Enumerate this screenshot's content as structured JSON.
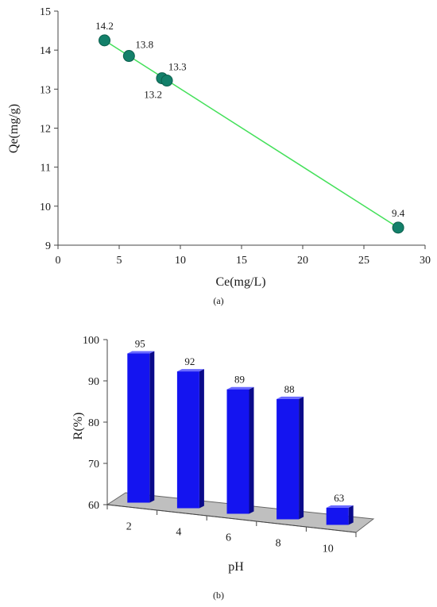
{
  "chart_data": [
    {
      "type": "scatter",
      "xlabel": "Ce(mg/L)",
      "ylabel": "Qe(mg/g)",
      "xlim": [
        0,
        30
      ],
      "ylim": [
        9,
        15
      ],
      "xticks": [
        0,
        5,
        10,
        15,
        20,
        25,
        30
      ],
      "yticks": [
        9,
        10,
        11,
        12,
        13,
        14,
        15
      ],
      "points": [
        {
          "x": 3.8,
          "y": 14.25,
          "label": "14.2"
        },
        {
          "x": 5.8,
          "y": 13.85,
          "label": "13.8"
        },
        {
          "x": 8.5,
          "y": 13.28,
          "label": "13.3"
        },
        {
          "x": 8.9,
          "y": 13.22,
          "label": "13.2"
        },
        {
          "x": 27.8,
          "y": 9.45,
          "label": "9.4"
        }
      ],
      "trendline": {
        "x": [
          3.8,
          27.8
        ],
        "y": [
          14.25,
          9.45
        ]
      },
      "marker_color": "#13806a",
      "line_color": "#44e05a",
      "grid": false,
      "caption": "(a)"
    },
    {
      "type": "bar",
      "xlabel": "pH",
      "ylabel": "R(%)",
      "ylim": [
        60,
        100
      ],
      "yticks": [
        60,
        70,
        80,
        90,
        100
      ],
      "categories": [
        "2",
        "4",
        "6",
        "8",
        "10"
      ],
      "values": [
        95,
        92,
        89,
        88,
        63
      ],
      "bar_color": "#1414f0",
      "floor_color": "#bfbfbf",
      "grid": false,
      "caption": "(b)"
    }
  ]
}
